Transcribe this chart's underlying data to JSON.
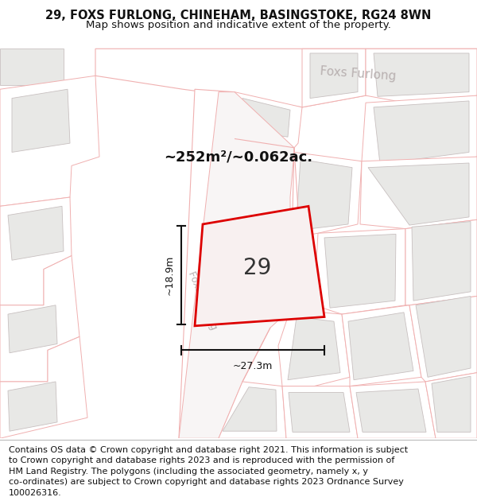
{
  "title_line1": "29, FOXS FURLONG, CHINEHAM, BASINGSTOKE, RG24 8WN",
  "title_line2": "Map shows position and indicative extent of the property.",
  "area_text": "~252m²/~0.062ac.",
  "label_width": "~27.3m",
  "label_height": "~18.9m",
  "property_number": "29",
  "map_bg": "#ffffff",
  "road_fill": "#ffffff",
  "building_fill": "#e8e8e8",
  "building_edge": "#cccccc",
  "road_line_color": "#f5b8b8",
  "road_line_color2": "#e8a0a0",
  "plot_color": "#dd0000",
  "dim_color": "#1a1a1a",
  "street_label_color": "#c0b8b8",
  "green_fill": "#d0e8d0",
  "title_fontsize": 10.5,
  "subtitle_fontsize": 9.5,
  "footer_fontsize": 8.0,
  "footer_lines": [
    "Contains OS data © Crown copyright and database right 2021. This information is subject",
    "to Crown copyright and database rights 2023 and is reproduced with the permission of",
    "HM Land Registry. The polygons (including the associated geometry, namely x, y",
    "co-ordinates) are subject to Crown copyright and database rights 2023 Ordnance Survey",
    "100026316."
  ]
}
